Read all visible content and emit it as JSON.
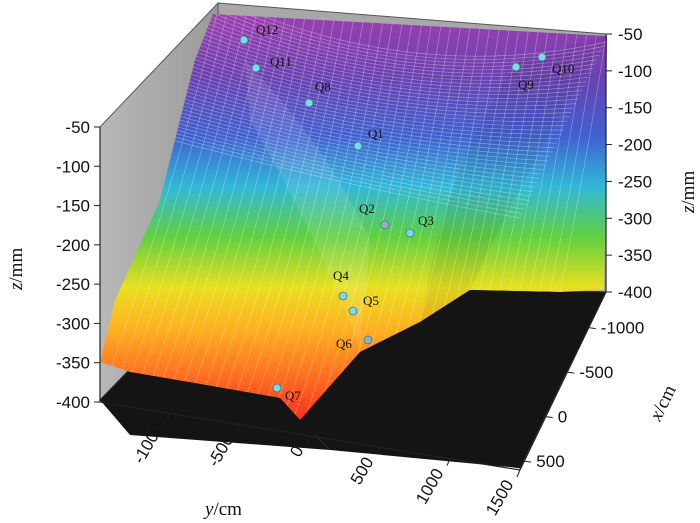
{
  "chart_data": {
    "type": "surface-3d",
    "title": "",
    "z_axis": {
      "label_var": "z",
      "label_unit": "/mm",
      "range": [
        -400,
        -50
      ],
      "ticks": [
        "-50",
        "-100",
        "-150",
        "-200",
        "-250",
        "-300",
        "-350",
        "-400"
      ]
    },
    "y_axis": {
      "label_var": "y",
      "label_unit": "/cm",
      "range": [
        -1500,
        1500
      ],
      "ticks": [
        "-1000",
        "-500",
        "0",
        "500",
        "1000",
        "1500"
      ]
    },
    "x_axis": {
      "label_var": "x",
      "label_unit": "/cm",
      "ticks": [
        "-1000",
        "-500",
        "0",
        "500"
      ]
    },
    "color_scale": [
      "#ff2020",
      "#ffa020",
      "#e8e020",
      "#60d040",
      "#30b8d8",
      "#4060d0",
      "#6a40b0",
      "#a040b0"
    ],
    "points": [
      {
        "label": "Q12"
      },
      {
        "label": "Q11"
      },
      {
        "label": "Q8"
      },
      {
        "label": "Q1"
      },
      {
        "label": "Q2"
      },
      {
        "label": "Q3"
      },
      {
        "label": "Q4"
      },
      {
        "label": "Q5"
      },
      {
        "label": "Q6"
      },
      {
        "label": "Q7"
      },
      {
        "label": "Q9"
      },
      {
        "label": "Q10"
      }
    ]
  }
}
